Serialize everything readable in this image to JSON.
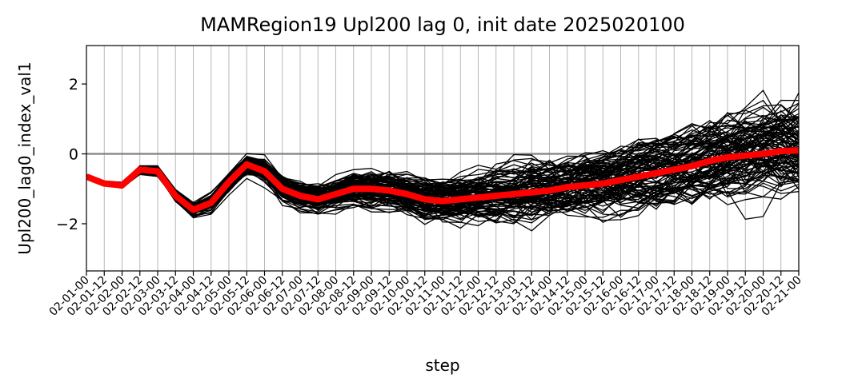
{
  "chart_data": {
    "type": "line",
    "title": "MAMRegion19 Upl200 lag 0, init date 2025020100",
    "xlabel": "step",
    "ylabel": "Upl200_lag0_index_val1",
    "ylim": [
      -3.35,
      3.1
    ],
    "yticks": [
      -2,
      0,
      2
    ],
    "ytick_labels": [
      "−2",
      "0",
      "2"
    ],
    "grid": "vertical",
    "zero_line": {
      "y": 0,
      "color": "#808080"
    },
    "categories": [
      "02-01-00",
      "02-01-12",
      "02-02-00",
      "02-02-12",
      "02-03-00",
      "02-03-12",
      "02-04-00",
      "02-04-12",
      "02-05-00",
      "02-05-12",
      "02-06-00",
      "02-06-12",
      "02-07-00",
      "02-07-12",
      "02-08-00",
      "02-08-12",
      "02-09-00",
      "02-09-12",
      "02-10-00",
      "02-10-12",
      "02-11-00",
      "02-11-12",
      "02-12-00",
      "02-12-12",
      "02-13-00",
      "02-13-12",
      "02-14-00",
      "02-14-12",
      "02-15-00",
      "02-15-12",
      "02-16-00",
      "02-16-12",
      "02-17-00",
      "02-17-12",
      "02-18-00",
      "02-18-12",
      "02-19-00",
      "02-19-12",
      "02-20-00",
      "02-20-12",
      "02-21-00"
    ],
    "mean_series": {
      "color": "#ff0000",
      "values": [
        -0.65,
        -0.85,
        -0.9,
        -0.45,
        -0.5,
        -1.2,
        -1.6,
        -1.4,
        -0.8,
        -0.3,
        -0.5,
        -1.0,
        -1.2,
        -1.3,
        -1.15,
        -1.0,
        -1.0,
        -1.05,
        -1.15,
        -1.3,
        -1.35,
        -1.3,
        -1.25,
        -1.2,
        -1.15,
        -1.1,
        -1.05,
        -0.95,
        -0.9,
        -0.85,
        -0.75,
        -0.65,
        -0.55,
        -0.45,
        -0.35,
        -0.2,
        -0.1,
        -0.05,
        0.0,
        0.08,
        0.1
      ]
    },
    "ensemble": {
      "color": "#000000",
      "member_count": 100
    }
  }
}
